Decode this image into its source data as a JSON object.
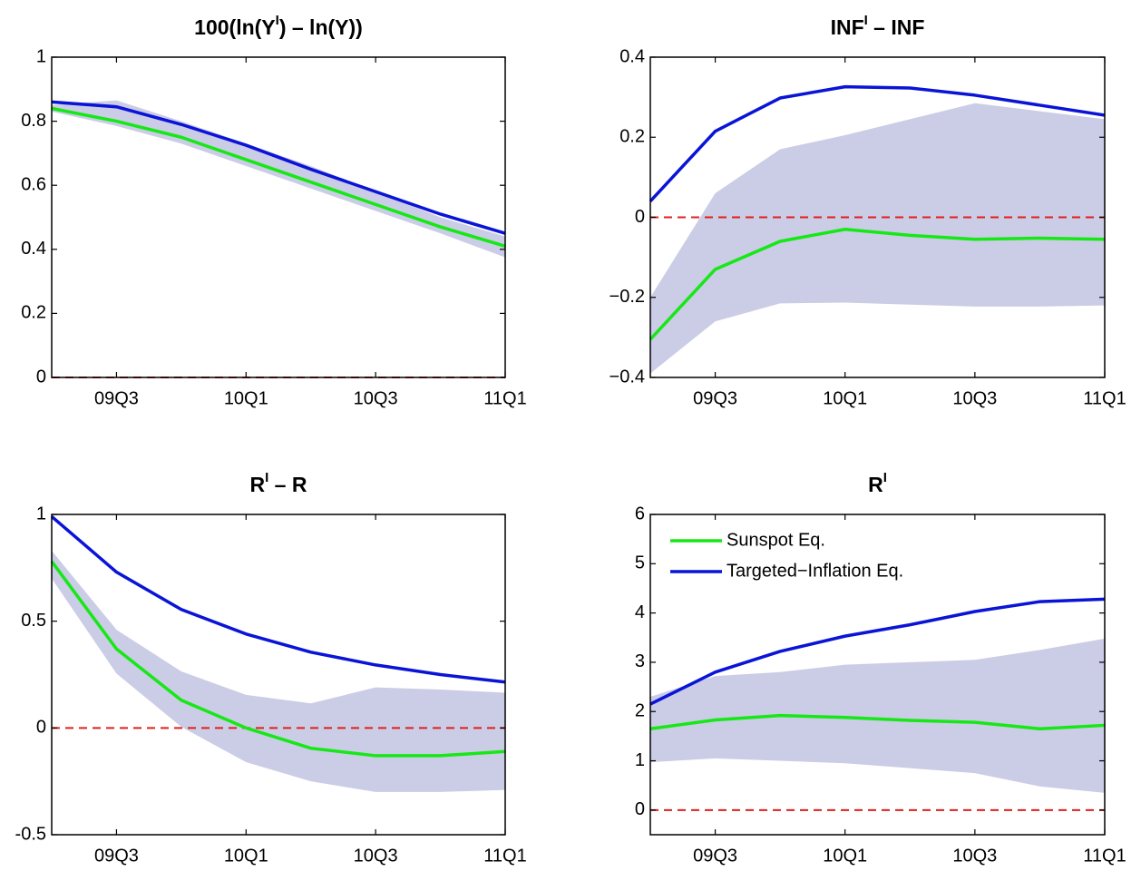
{
  "chart_data": [
    {
      "type": "line",
      "title": [
        "100(ln(Y",
        "I",
        ") – ln(Y))"
      ],
      "categories": [
        null,
        "09Q3",
        null,
        "10Q1",
        null,
        "10Q3",
        null,
        "11Q1"
      ],
      "ylim": [
        0,
        1
      ],
      "yticks": [
        0,
        0.2,
        0.4,
        0.6,
        0.8,
        1
      ],
      "reference_line": 0,
      "band": {
        "color": "#cbcce6",
        "upper": [
          0.85,
          0.865,
          0.8,
          0.73,
          0.66,
          0.58,
          0.5,
          0.44
        ],
        "lower": [
          0.83,
          0.785,
          0.73,
          0.66,
          0.59,
          0.52,
          0.45,
          0.375
        ]
      },
      "series": [
        {
          "color": "#16e816",
          "values": [
            0.84,
            0.8,
            0.75,
            0.68,
            0.61,
            0.54,
            0.47,
            0.41
          ]
        },
        {
          "color": "#0a14d6",
          "values": [
            0.86,
            0.845,
            0.79,
            0.725,
            0.65,
            0.58,
            0.51,
            0.45
          ]
        }
      ]
    },
    {
      "type": "line",
      "title": [
        "INF",
        "I",
        " – INF"
      ],
      "categories": [
        null,
        "09Q3",
        null,
        "10Q1",
        null,
        "10Q3",
        null,
        "11Q1"
      ],
      "ylim": [
        -0.4,
        0.4
      ],
      "yticks": [
        {
          "value": -0.4,
          "label": "−0.4"
        },
        {
          "value": -0.2,
          "label": "−0.2"
        },
        0,
        0.2,
        0.4
      ],
      "reference_line": 0,
      "band": {
        "color": "#cbcce6",
        "upper": [
          -0.2,
          0.06,
          0.17,
          0.205,
          0.245,
          0.285,
          0.265,
          0.245
        ],
        "lower": [
          -0.39,
          -0.26,
          -0.215,
          -0.213,
          -0.218,
          -0.223,
          -0.223,
          -0.22
        ]
      },
      "series": [
        {
          "color": "#16e816",
          "values": [
            -0.305,
            -0.13,
            -0.06,
            -0.03,
            -0.045,
            -0.055,
            -0.052,
            -0.055
          ]
        },
        {
          "color": "#0a14d6",
          "values": [
            0.04,
            0.215,
            0.298,
            0.326,
            0.323,
            0.305,
            0.28,
            0.255
          ]
        }
      ]
    },
    {
      "type": "line",
      "title": [
        "R",
        "I",
        " – R"
      ],
      "categories": [
        null,
        "09Q3",
        null,
        "10Q1",
        null,
        "10Q3",
        null,
        "11Q1"
      ],
      "ylim": [
        -0.5,
        1
      ],
      "yticks": [
        -0.5,
        0,
        0.5,
        1
      ],
      "reference_line": 0,
      "band": {
        "color": "#cbcce6",
        "upper": [
          0.83,
          0.46,
          0.265,
          0.155,
          0.115,
          0.19,
          0.18,
          0.165
        ],
        "lower": [
          0.7,
          0.255,
          0.005,
          -0.16,
          -0.25,
          -0.3,
          -0.3,
          -0.29
        ]
      },
      "series": [
        {
          "color": "#16e816",
          "values": [
            0.78,
            0.37,
            0.13,
            0.0,
            -0.095,
            -0.13,
            -0.13,
            -0.11
          ]
        },
        {
          "color": "#0a14d6",
          "values": [
            0.99,
            0.73,
            0.555,
            0.44,
            0.355,
            0.295,
            0.25,
            0.215
          ]
        }
      ]
    },
    {
      "type": "line",
      "title": [
        "R",
        "I"
      ],
      "categories": [
        null,
        "09Q3",
        null,
        "10Q1",
        null,
        "10Q3",
        null,
        "11Q1"
      ],
      "ylim": [
        -0.5,
        6
      ],
      "yticks": [
        0,
        1,
        2,
        3,
        4,
        5,
        6
      ],
      "reference_line": 0,
      "legend": "upper left",
      "band": {
        "color": "#cbcce6",
        "upper": [
          2.3,
          2.72,
          2.8,
          2.95,
          3.0,
          3.05,
          3.25,
          3.48
        ],
        "lower": [
          0.97,
          1.05,
          1.0,
          0.95,
          0.85,
          0.75,
          0.48,
          0.35
        ]
      },
      "series": [
        {
          "name": "Sunspot Eq.",
          "color": "#16e816",
          "values": [
            1.65,
            1.83,
            1.92,
            1.88,
            1.82,
            1.78,
            1.65,
            1.72
          ]
        },
        {
          "name": "Targeted−Inflation Eq.",
          "color": "#0a14d6",
          "values": [
            2.15,
            2.8,
            3.22,
            3.53,
            3.76,
            4.03,
            4.23,
            4.28
          ]
        }
      ]
    }
  ]
}
